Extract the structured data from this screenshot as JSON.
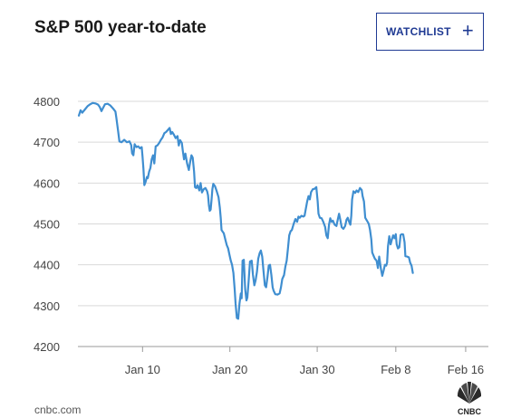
{
  "header": {
    "title": "S&P 500 year-to-date",
    "watchlist_label": "WATCHLIST"
  },
  "footer": {
    "source": "cnbc.com",
    "logo_text": "CNBC"
  },
  "colors": {
    "line": "#3f8ed0",
    "grid": "#d9d9d9",
    "button": "#1f3a93"
  },
  "chart_data": {
    "type": "line",
    "title": "S&P 500 year-to-date",
    "ylim": [
      4200,
      4800
    ],
    "yticks": [
      4200,
      4300,
      4400,
      4500,
      4600,
      4700,
      4800
    ],
    "xticks": [
      {
        "label": "Jan 10",
        "x": 10
      },
      {
        "label": "Jan 20",
        "x": 20
      },
      {
        "label": "Jan 30",
        "x": 30
      },
      {
        "label": "Feb 8",
        "x": 39
      },
      {
        "label": "Feb 16",
        "x": 47
      }
    ],
    "xlim": [
      2.6,
      49.6
    ],
    "grid": "horizontal",
    "series": [
      {
        "values": [
          [
            2.7,
            4765
          ],
          [
            2.9,
            4778
          ],
          [
            3.1,
            4772
          ],
          [
            3.4,
            4780
          ],
          [
            3.7,
            4788
          ],
          [
            4.0,
            4793
          ],
          [
            4.3,
            4796
          ],
          [
            4.6,
            4795
          ],
          [
            4.9,
            4792
          ],
          [
            5.1,
            4786
          ],
          [
            5.3,
            4776
          ],
          [
            5.5,
            4785
          ],
          [
            5.7,
            4793
          ],
          [
            6.0,
            4794
          ],
          [
            6.3,
            4790
          ],
          [
            6.6,
            4783
          ],
          [
            6.9,
            4775
          ],
          [
            7.0,
            4760
          ],
          [
            7.2,
            4728
          ],
          [
            7.35,
            4702
          ],
          [
            7.6,
            4700
          ],
          [
            7.9,
            4706
          ],
          [
            8.2,
            4700
          ],
          [
            8.5,
            4702
          ],
          [
            8.7,
            4693
          ],
          [
            8.8,
            4673
          ],
          [
            8.95,
            4668
          ],
          [
            9.1,
            4695
          ],
          [
            9.3,
            4688
          ],
          [
            9.5,
            4690
          ],
          [
            9.7,
            4685
          ],
          [
            9.9,
            4688
          ],
          [
            10.0,
            4665
          ],
          [
            10.1,
            4635
          ],
          [
            10.2,
            4595
          ],
          [
            10.35,
            4603
          ],
          [
            10.5,
            4615
          ],
          [
            10.6,
            4612
          ],
          [
            10.75,
            4628
          ],
          [
            10.9,
            4637
          ],
          [
            11.05,
            4658
          ],
          [
            11.2,
            4668
          ],
          [
            11.35,
            4648
          ],
          [
            11.5,
            4690
          ],
          [
            11.7,
            4692
          ],
          [
            11.9,
            4698
          ],
          [
            12.1,
            4706
          ],
          [
            12.3,
            4712
          ],
          [
            12.5,
            4722
          ],
          [
            12.7,
            4725
          ],
          [
            12.9,
            4730
          ],
          [
            13.1,
            4735
          ],
          [
            13.25,
            4720
          ],
          [
            13.4,
            4725
          ],
          [
            13.6,
            4718
          ],
          [
            13.8,
            4710
          ],
          [
            14.0,
            4715
          ],
          [
            14.15,
            4692
          ],
          [
            14.3,
            4705
          ],
          [
            14.5,
            4698
          ],
          [
            14.6,
            4680
          ],
          [
            14.75,
            4658
          ],
          [
            14.9,
            4672
          ],
          [
            15.1,
            4648
          ],
          [
            15.3,
            4632
          ],
          [
            15.45,
            4652
          ],
          [
            15.6,
            4668
          ],
          [
            15.75,
            4662
          ],
          [
            15.9,
            4628
          ],
          [
            16.0,
            4590
          ],
          [
            16.15,
            4588
          ],
          [
            16.3,
            4595
          ],
          [
            16.5,
            4582
          ],
          [
            16.65,
            4600
          ],
          [
            16.8,
            4577
          ],
          [
            17.0,
            4585
          ],
          [
            17.2,
            4588
          ],
          [
            17.4,
            4580
          ],
          [
            17.5,
            4570
          ],
          [
            17.6,
            4545
          ],
          [
            17.7,
            4532
          ],
          [
            17.8,
            4535
          ],
          [
            17.9,
            4560
          ],
          [
            18.0,
            4585
          ],
          [
            18.1,
            4598
          ],
          [
            18.3,
            4592
          ],
          [
            18.5,
            4580
          ],
          [
            18.7,
            4565
          ],
          [
            18.85,
            4540
          ],
          [
            18.95,
            4515
          ],
          [
            19.05,
            4485
          ],
          [
            19.3,
            4477
          ],
          [
            19.5,
            4460
          ],
          [
            19.65,
            4448
          ],
          [
            19.8,
            4440
          ],
          [
            19.95,
            4425
          ],
          [
            20.1,
            4410
          ],
          [
            20.25,
            4400
          ],
          [
            20.4,
            4380
          ],
          [
            20.55,
            4340
          ],
          [
            20.65,
            4305
          ],
          [
            20.8,
            4270
          ],
          [
            20.95,
            4268
          ],
          [
            21.1,
            4305
          ],
          [
            21.25,
            4330
          ],
          [
            21.35,
            4318
          ],
          [
            21.45,
            4410
          ],
          [
            21.6,
            4412
          ],
          [
            21.75,
            4340
          ],
          [
            21.9,
            4313
          ],
          [
            22.0,
            4320
          ],
          [
            22.15,
            4360
          ],
          [
            22.3,
            4408
          ],
          [
            22.5,
            4410
          ],
          [
            22.65,
            4375
          ],
          [
            22.8,
            4350
          ],
          [
            22.95,
            4362
          ],
          [
            23.1,
            4383
          ],
          [
            23.25,
            4415
          ],
          [
            23.4,
            4428
          ],
          [
            23.55,
            4435
          ],
          [
            23.7,
            4420
          ],
          [
            23.85,
            4385
          ],
          [
            24.0,
            4350
          ],
          [
            24.15,
            4345
          ],
          [
            24.3,
            4370
          ],
          [
            24.45,
            4398
          ],
          [
            24.6,
            4400
          ],
          [
            24.75,
            4375
          ],
          [
            24.9,
            4345
          ],
          [
            25.0,
            4337
          ],
          [
            25.2,
            4328
          ],
          [
            25.45,
            4327
          ],
          [
            25.7,
            4330
          ],
          [
            25.85,
            4345
          ],
          [
            26.0,
            4365
          ],
          [
            26.2,
            4375
          ],
          [
            26.35,
            4395
          ],
          [
            26.5,
            4410
          ],
          [
            26.65,
            4440
          ],
          [
            26.8,
            4472
          ],
          [
            26.95,
            4482
          ],
          [
            27.1,
            4485
          ],
          [
            27.3,
            4500
          ],
          [
            27.5,
            4512
          ],
          [
            27.7,
            4505
          ],
          [
            27.85,
            4518
          ],
          [
            28.0,
            4515
          ],
          [
            28.2,
            4520
          ],
          [
            28.4,
            4518
          ],
          [
            28.55,
            4520
          ],
          [
            28.7,
            4538
          ],
          [
            28.85,
            4555
          ],
          [
            29.0,
            4568
          ],
          [
            29.15,
            4560
          ],
          [
            29.3,
            4578
          ],
          [
            29.5,
            4585
          ],
          [
            29.7,
            4586
          ],
          [
            29.9,
            4590
          ],
          [
            30.05,
            4555
          ],
          [
            30.15,
            4525
          ],
          [
            30.3,
            4515
          ],
          [
            30.5,
            4514
          ],
          [
            30.7,
            4505
          ],
          [
            30.9,
            4493
          ],
          [
            31.05,
            4472
          ],
          [
            31.2,
            4465
          ],
          [
            31.35,
            4498
          ],
          [
            31.5,
            4514
          ],
          [
            31.65,
            4505
          ],
          [
            31.8,
            4508
          ],
          [
            32.0,
            4498
          ],
          [
            32.2,
            4495
          ],
          [
            32.35,
            4510
          ],
          [
            32.5,
            4525
          ],
          [
            32.65,
            4510
          ],
          [
            32.8,
            4492
          ],
          [
            33.0,
            4488
          ],
          [
            33.2,
            4495
          ],
          [
            33.35,
            4510
          ],
          [
            33.5,
            4515
          ],
          [
            33.65,
            4505
          ],
          [
            33.8,
            4498
          ],
          [
            33.9,
            4520
          ],
          [
            34.0,
            4560
          ],
          [
            34.15,
            4580
          ],
          [
            34.35,
            4576
          ],
          [
            34.5,
            4582
          ],
          [
            34.7,
            4578
          ],
          [
            34.9,
            4588
          ],
          [
            35.1,
            4583
          ],
          [
            35.2,
            4568
          ],
          [
            35.35,
            4555
          ],
          [
            35.5,
            4515
          ],
          [
            35.7,
            4508
          ],
          [
            35.9,
            4500
          ],
          [
            36.05,
            4485
          ],
          [
            36.2,
            4462
          ],
          [
            36.3,
            4430
          ],
          [
            36.45,
            4422
          ],
          [
            36.6,
            4415
          ],
          [
            36.8,
            4410
          ],
          [
            36.95,
            4392
          ],
          [
            37.1,
            4420
          ],
          [
            37.3,
            4390
          ],
          [
            37.45,
            4373
          ],
          [
            37.6,
            4385
          ],
          [
            37.75,
            4400
          ],
          [
            37.9,
            4398
          ],
          [
            38.0,
            4405
          ],
          [
            38.1,
            4445
          ],
          [
            38.25,
            4470
          ],
          [
            38.4,
            4450
          ],
          [
            38.55,
            4462
          ],
          [
            38.7,
            4472
          ],
          [
            38.85,
            4465
          ],
          [
            39.0,
            4475
          ],
          [
            39.1,
            4450
          ],
          [
            39.25,
            4440
          ],
          [
            39.4,
            4443
          ],
          [
            39.55,
            4473
          ],
          [
            39.7,
            4475
          ],
          [
            39.85,
            4474
          ],
          [
            40.0,
            4455
          ],
          [
            40.1,
            4421
          ],
          [
            40.3,
            4420
          ],
          [
            40.5,
            4418
          ],
          [
            40.65,
            4405
          ],
          [
            40.8,
            4398
          ],
          [
            40.95,
            4380
          ]
        ]
      }
    ]
  }
}
